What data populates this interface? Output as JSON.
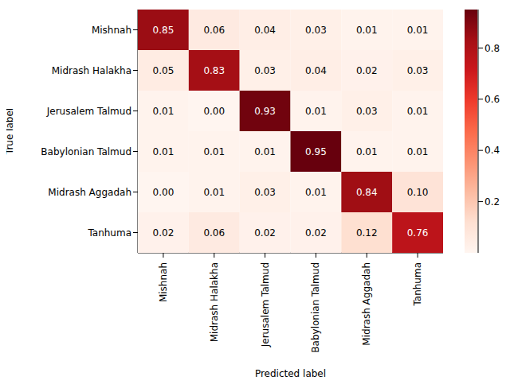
{
  "chart_data": {
    "type": "heatmap",
    "x_label": "Predicted label",
    "y_label": "True label",
    "x_categories": [
      "Mishnah",
      "Midrash Halakha",
      "Jerusalem Talmud",
      "Babylonian Talmud",
      "Midrash Aggadah",
      "Tanhuma"
    ],
    "y_categories": [
      "Mishnah",
      "Midrash Halakha",
      "Jerusalem Talmud",
      "Babylonian Talmud",
      "Midrash Aggadah",
      "Tanhuma"
    ],
    "values": [
      [
        0.85,
        0.06,
        0.04,
        0.03,
        0.01,
        0.01
      ],
      [
        0.05,
        0.83,
        0.03,
        0.04,
        0.02,
        0.03
      ],
      [
        0.01,
        0.0,
        0.93,
        0.01,
        0.03,
        0.01
      ],
      [
        0.01,
        0.01,
        0.01,
        0.95,
        0.01,
        0.01
      ],
      [
        0.0,
        0.01,
        0.03,
        0.01,
        0.84,
        0.1
      ],
      [
        0.02,
        0.06,
        0.02,
        0.02,
        0.12,
        0.76
      ]
    ],
    "value_labels": [
      [
        "0.85",
        "0.06",
        "0.04",
        "0.03",
        "0.01",
        "0.01"
      ],
      [
        "0.05",
        "0.83",
        "0.03",
        "0.04",
        "0.02",
        "0.03"
      ],
      [
        "0.01",
        "0.00",
        "0.93",
        "0.01",
        "0.03",
        "0.01"
      ],
      [
        "0.01",
        "0.01",
        "0.01",
        "0.95",
        "0.01",
        "0.01"
      ],
      [
        "0.00",
        "0.01",
        "0.03",
        "0.01",
        "0.84",
        "0.10"
      ],
      [
        "0.02",
        "0.06",
        "0.02",
        "0.02",
        "0.12",
        "0.76"
      ]
    ],
    "data_labels": true,
    "colorbar": {
      "range": [
        0,
        0.95
      ],
      "ticks": [
        0.2,
        0.4,
        0.6,
        0.8
      ]
    }
  }
}
